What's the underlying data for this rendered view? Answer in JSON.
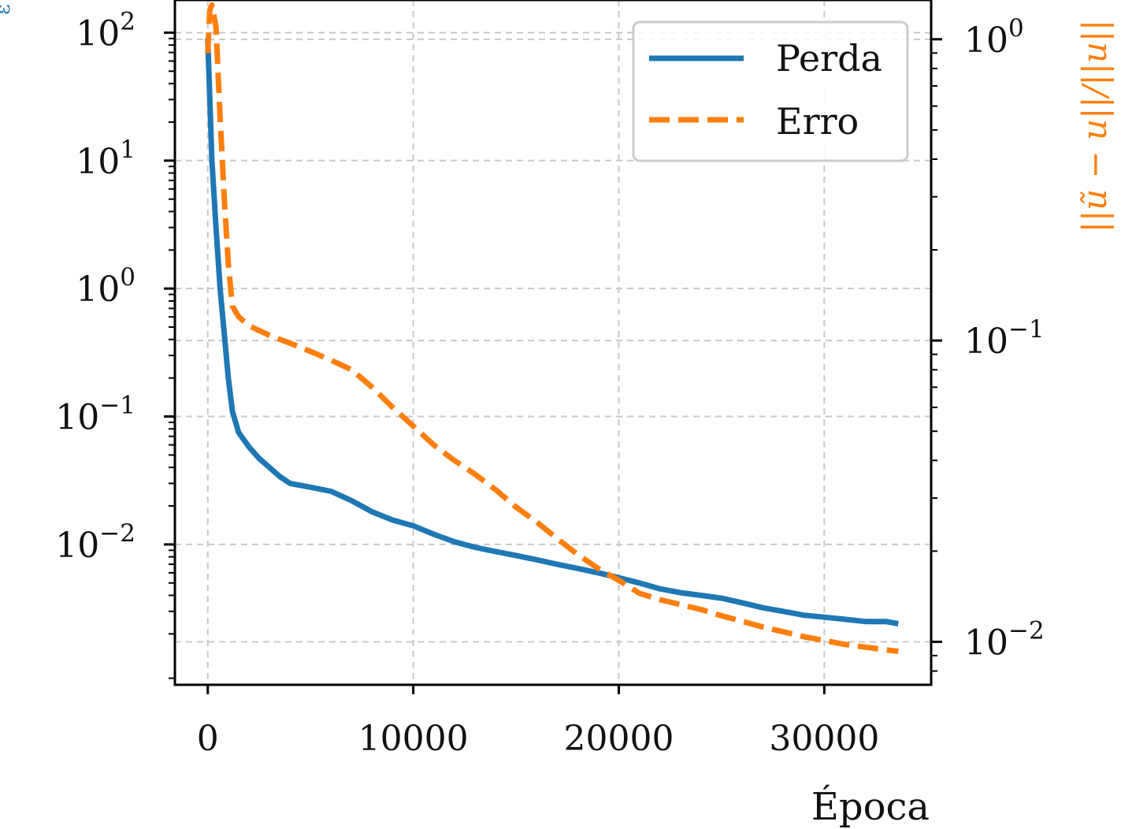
{
  "colors": {
    "loss": "#1f77b4",
    "error": "#ff7f0e",
    "grid": "#c8c8c8",
    "axis": "#000000"
  },
  "chart_data": {
    "type": "line",
    "title": "",
    "xlabel": "Época",
    "ylabel_left": "ε",
    "ylabel_right": "||ũ − u||/||u||",
    "xlim": [
      -1600,
      35200
    ],
    "ylim_left": [
      0.0008,
      180
    ],
    "ylim_right": [
      0.0072,
      1.35
    ],
    "yscale_left": "log",
    "yscale_right": "log",
    "grid": true,
    "legend_position": "upper right",
    "x_ticks": [
      {
        "value": 0,
        "label": "0"
      },
      {
        "value": 10000,
        "label": "10000"
      },
      {
        "value": 20000,
        "label": "20000"
      },
      {
        "value": 30000,
        "label": "30000"
      }
    ],
    "y_ticks_left": [
      {
        "value": 100,
        "base": "10",
        "exp": "2"
      },
      {
        "value": 10,
        "base": "10",
        "exp": "1"
      },
      {
        "value": 1,
        "base": "10",
        "exp": "0"
      },
      {
        "value": 0.1,
        "base": "10",
        "exp": "−1"
      },
      {
        "value": 0.01,
        "base": "10",
        "exp": "−2"
      }
    ],
    "y_ticks_right": [
      {
        "value": 1,
        "base": "10",
        "exp": "0"
      },
      {
        "value": 0.1,
        "base": "10",
        "exp": "−1"
      },
      {
        "value": 0.01,
        "base": "10",
        "exp": "−2"
      }
    ],
    "series": [
      {
        "name": "Perda",
        "axis": "left",
        "style": "solid",
        "x": [
          0,
          200,
          400,
          600,
          800,
          1000,
          1200,
          1500,
          2000,
          2500,
          3000,
          3500,
          4000,
          5000,
          6000,
          7000,
          8000,
          9000,
          10000,
          11000,
          12000,
          13000,
          14000,
          15000,
          16000,
          17000,
          18000,
          19000,
          20000,
          21000,
          22000,
          23000,
          24000,
          25000,
          26000,
          27000,
          28000,
          29000,
          30000,
          31000,
          32000,
          33000,
          33600
        ],
        "y": [
          90,
          10,
          3,
          1,
          0.45,
          0.2,
          0.11,
          0.075,
          0.058,
          0.047,
          0.04,
          0.034,
          0.03,
          0.028,
          0.026,
          0.022,
          0.018,
          0.0155,
          0.014,
          0.012,
          0.0105,
          0.0095,
          0.0088,
          0.0082,
          0.0076,
          0.007,
          0.0065,
          0.006,
          0.0055,
          0.005,
          0.0045,
          0.0042,
          0.004,
          0.0038,
          0.0035,
          0.0032,
          0.003,
          0.0028,
          0.0027,
          0.0026,
          0.0025,
          0.0025,
          0.0024
        ]
      },
      {
        "name": "Erro",
        "axis": "right",
        "style": "dashed",
        "x": [
          0,
          100,
          200,
          400,
          600,
          800,
          1000,
          1200,
          1500,
          2000,
          3000,
          4000,
          5000,
          6000,
          7000,
          8000,
          9000,
          10000,
          11000,
          12000,
          13000,
          14000,
          15000,
          16000,
          17000,
          18000,
          19000,
          20000,
          21000,
          22000,
          23000,
          24000,
          25000,
          26000,
          27000,
          28000,
          29000,
          30000,
          31000,
          32000,
          33000,
          33600
        ],
        "y": [
          0.9,
          1.25,
          1.3,
          1.1,
          0.55,
          0.3,
          0.18,
          0.13,
          0.12,
          0.112,
          0.104,
          0.098,
          0.092,
          0.086,
          0.08,
          0.07,
          0.06,
          0.052,
          0.045,
          0.04,
          0.036,
          0.032,
          0.028,
          0.025,
          0.022,
          0.0195,
          0.0175,
          0.016,
          0.0145,
          0.0138,
          0.0133,
          0.0128,
          0.0122,
          0.0117,
          0.0112,
          0.0108,
          0.0104,
          0.0101,
          0.0098,
          0.0096,
          0.0094,
          0.0093
        ]
      }
    ]
  }
}
